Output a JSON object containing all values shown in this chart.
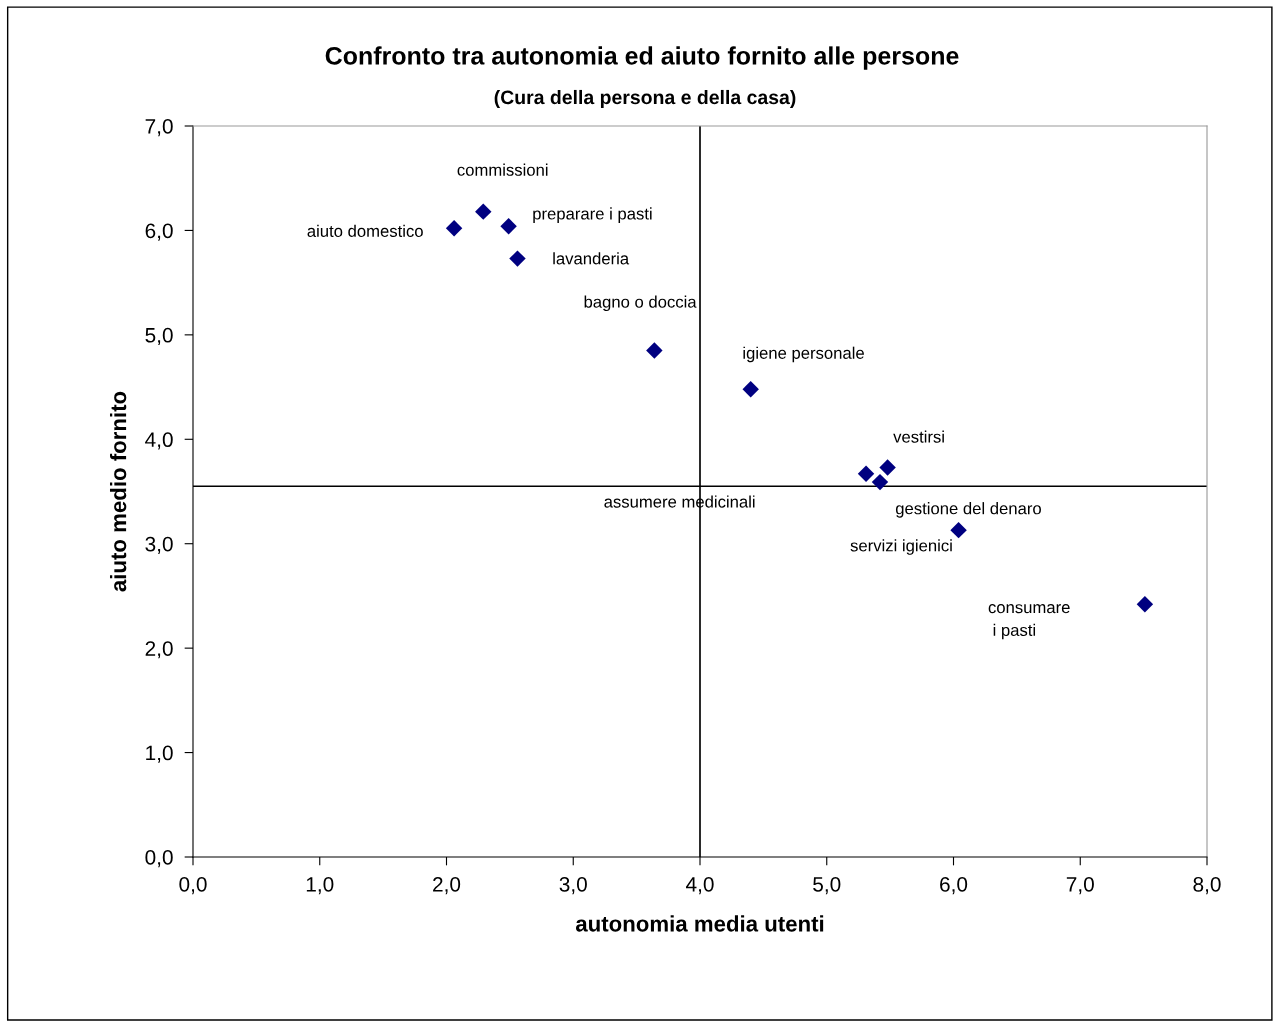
{
  "chart_data": {
    "type": "scatter",
    "title": "Confronto tra autonomia ed aiuto fornito alle persone",
    "subtitle": "(Cura della persona e della casa)",
    "xlabel": "autonomia media utenti",
    "ylabel": "aiuto medio fornito",
    "x": [
      2.06,
      2.29,
      2.49,
      2.56,
      3.64,
      4.4,
      5.48,
      5.31,
      5.42,
      6.04,
      7.51
    ],
    "series": [
      {
        "color": "#000080",
        "values": [
          6.02,
          6.18,
          6.04,
          5.73,
          4.85,
          4.48,
          3.73,
          3.67,
          3.59,
          3.13,
          2.42
        ]
      }
    ],
    "marker": "diamond",
    "annotations": [
      {
        "text": "aiuto domestico",
        "x": 2.06,
        "y": 6.02
      },
      {
        "text": "commissioni",
        "x": 2.29,
        "y": 6.18
      },
      {
        "text": "preparare i pasti",
        "x": 2.49,
        "y": 6.04
      },
      {
        "text": "lavanderia",
        "x": 2.56,
        "y": 5.73
      },
      {
        "text": "bagno o doccia",
        "x": 3.64,
        "y": 4.85
      },
      {
        "text": "igiene personale",
        "x": 4.4,
        "y": 4.48
      },
      {
        "text": "vestirsi",
        "x": 5.48,
        "y": 3.73
      },
      "assumere medicinali",
      {
        "text": "gestione del denaro",
        "x": 5.42,
        "y": 3.59
      },
      "servizi igienici",
      "consumare\n i pasti"
    ],
    "ref_lines": [
      {
        "axis": "x",
        "value": 4.0,
        "color": "#000000"
      },
      {
        "axis": "y",
        "value": 3.55,
        "color": "#000000"
      }
    ],
    "xlim": [
      0,
      8
    ],
    "ylim": [
      0,
      7
    ],
    "xticks": [
      {
        "value": 0,
        "label": "0,0"
      },
      {
        "value": 1,
        "label": "1,0"
      },
      {
        "value": 2,
        "label": "2,0"
      },
      {
        "value": 3,
        "label": "3,0"
      },
      {
        "value": 4,
        "label": "4,0"
      },
      {
        "value": 5,
        "label": "5,0"
      },
      {
        "value": 6,
        "label": "6,0"
      },
      {
        "value": 7,
        "label": "7,0"
      },
      {
        "value": 8,
        "label": "8,0"
      }
    ],
    "yticks": [
      {
        "value": 0,
        "label": "0,0"
      },
      {
        "value": 1,
        "label": "1,0"
      },
      {
        "value": 2,
        "label": "2,0"
      },
      {
        "value": 3,
        "label": "3,0"
      },
      {
        "value": 4,
        "label": "4,0"
      },
      {
        "value": 5,
        "label": "5,0"
      },
      {
        "value": 6,
        "label": "6,0"
      },
      {
        "value": 7,
        "label": "7,0"
      }
    ],
    "grid": false,
    "legend": false
  }
}
